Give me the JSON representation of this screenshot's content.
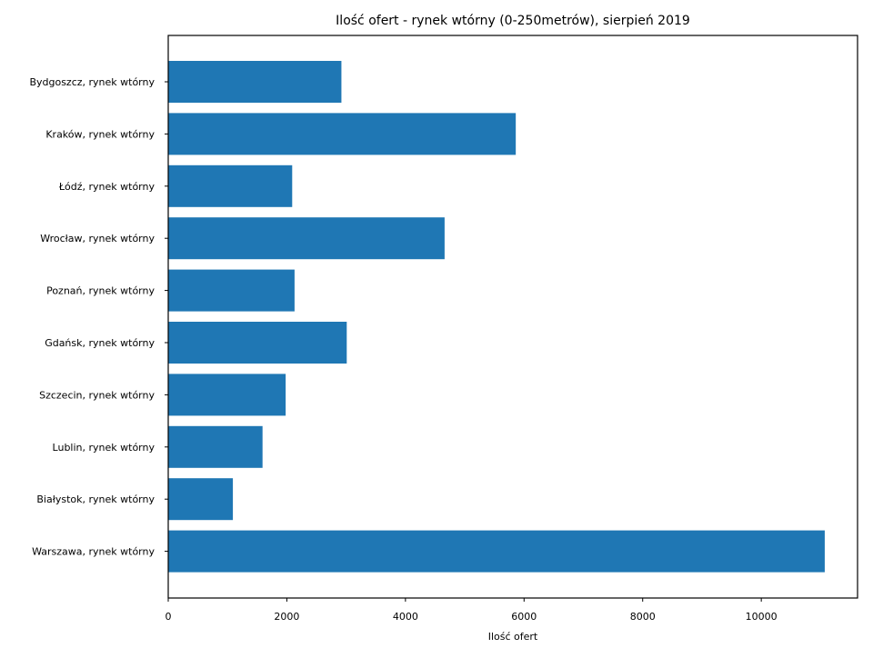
{
  "chart_data": {
    "type": "bar",
    "orientation": "horizontal",
    "title": "Ilość ofert - rynek wtórny (0-250metrów), sierpień 2019",
    "xlabel": "Ilość ofert",
    "ylabel": "",
    "categories": [
      "Bydgoszcz, rynek wtórny",
      "Kraków, rynek wtórny",
      "Łódź, rynek wtórny",
      "Wrocław, rynek wtórny",
      "Poznań, rynek wtórny",
      "Gdańsk, rynek wtórny",
      "Szczecin, rynek wtórny",
      "Lublin, rynek wtórny",
      "Białystok, rynek wtórny",
      "Warszawa, rynek wtórny"
    ],
    "values": [
      2920,
      5860,
      2090,
      4660,
      2130,
      3010,
      1980,
      1590,
      1090,
      11070
    ],
    "xlim": [
      0,
      11623
    ],
    "xticks": [
      0,
      2000,
      4000,
      6000,
      8000,
      10000
    ],
    "bar_color": "#1f77b4",
    "grid": false,
    "legend": "none"
  }
}
